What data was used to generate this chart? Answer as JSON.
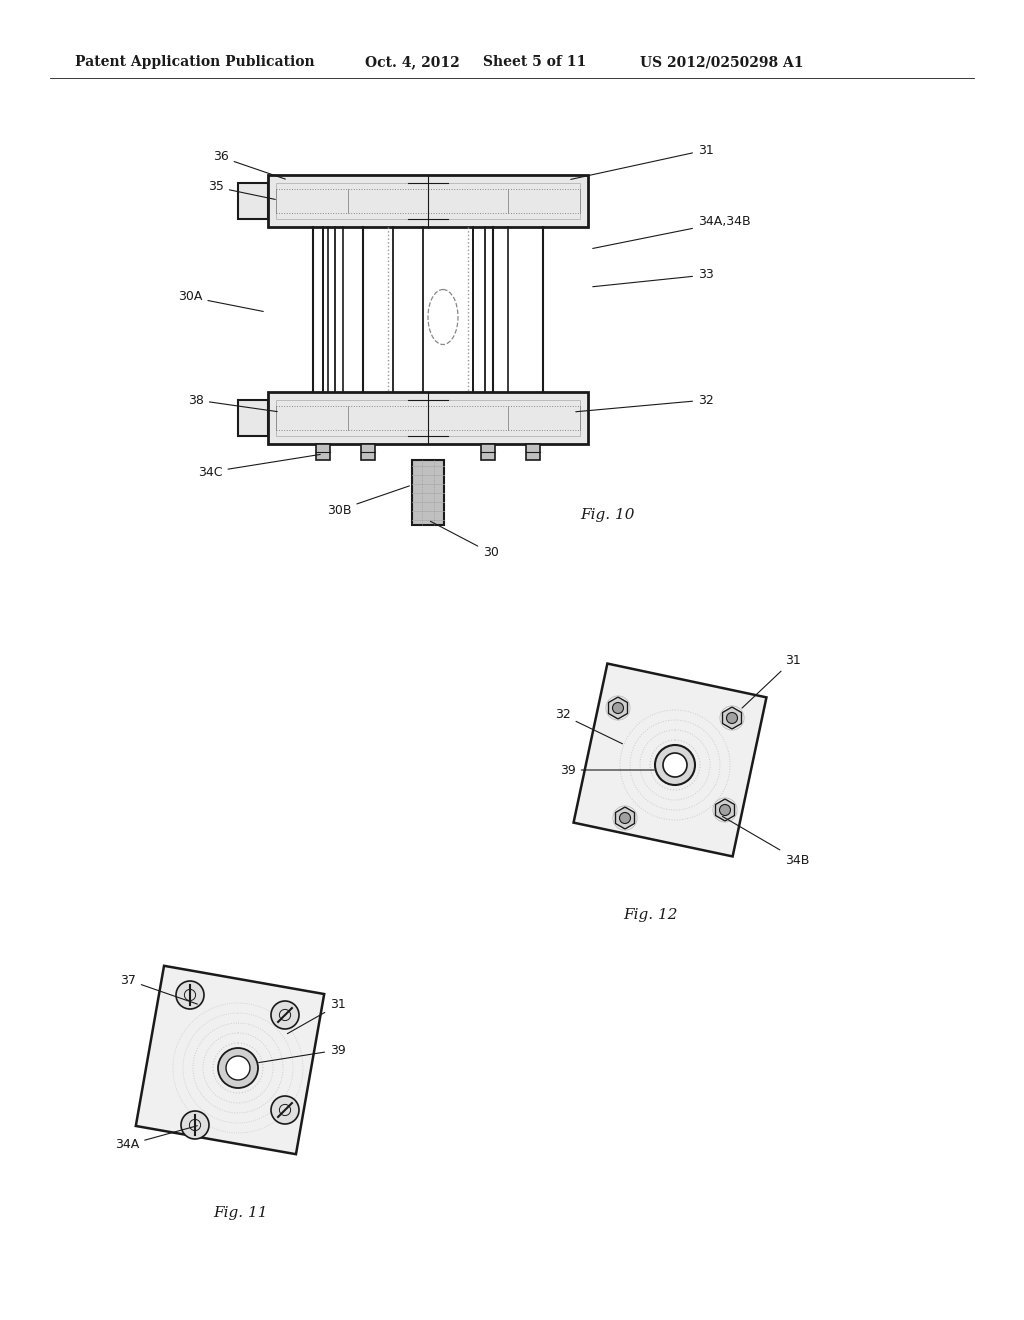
{
  "bg_color": "#ffffff",
  "header_text": "Patent Application Publication",
  "header_date": "Oct. 4, 2012",
  "header_sheet": "Sheet 5 of 11",
  "header_patent": "US 2012/0250298 A1",
  "fig10_label": "Fig. 10",
  "fig11_label": "Fig. 11",
  "fig12_label": "Fig. 12",
  "line_color": "#1a1a1a",
  "gray1": "#e8e8e8",
  "gray2": "#c0c0c0",
  "gray3": "#909090"
}
